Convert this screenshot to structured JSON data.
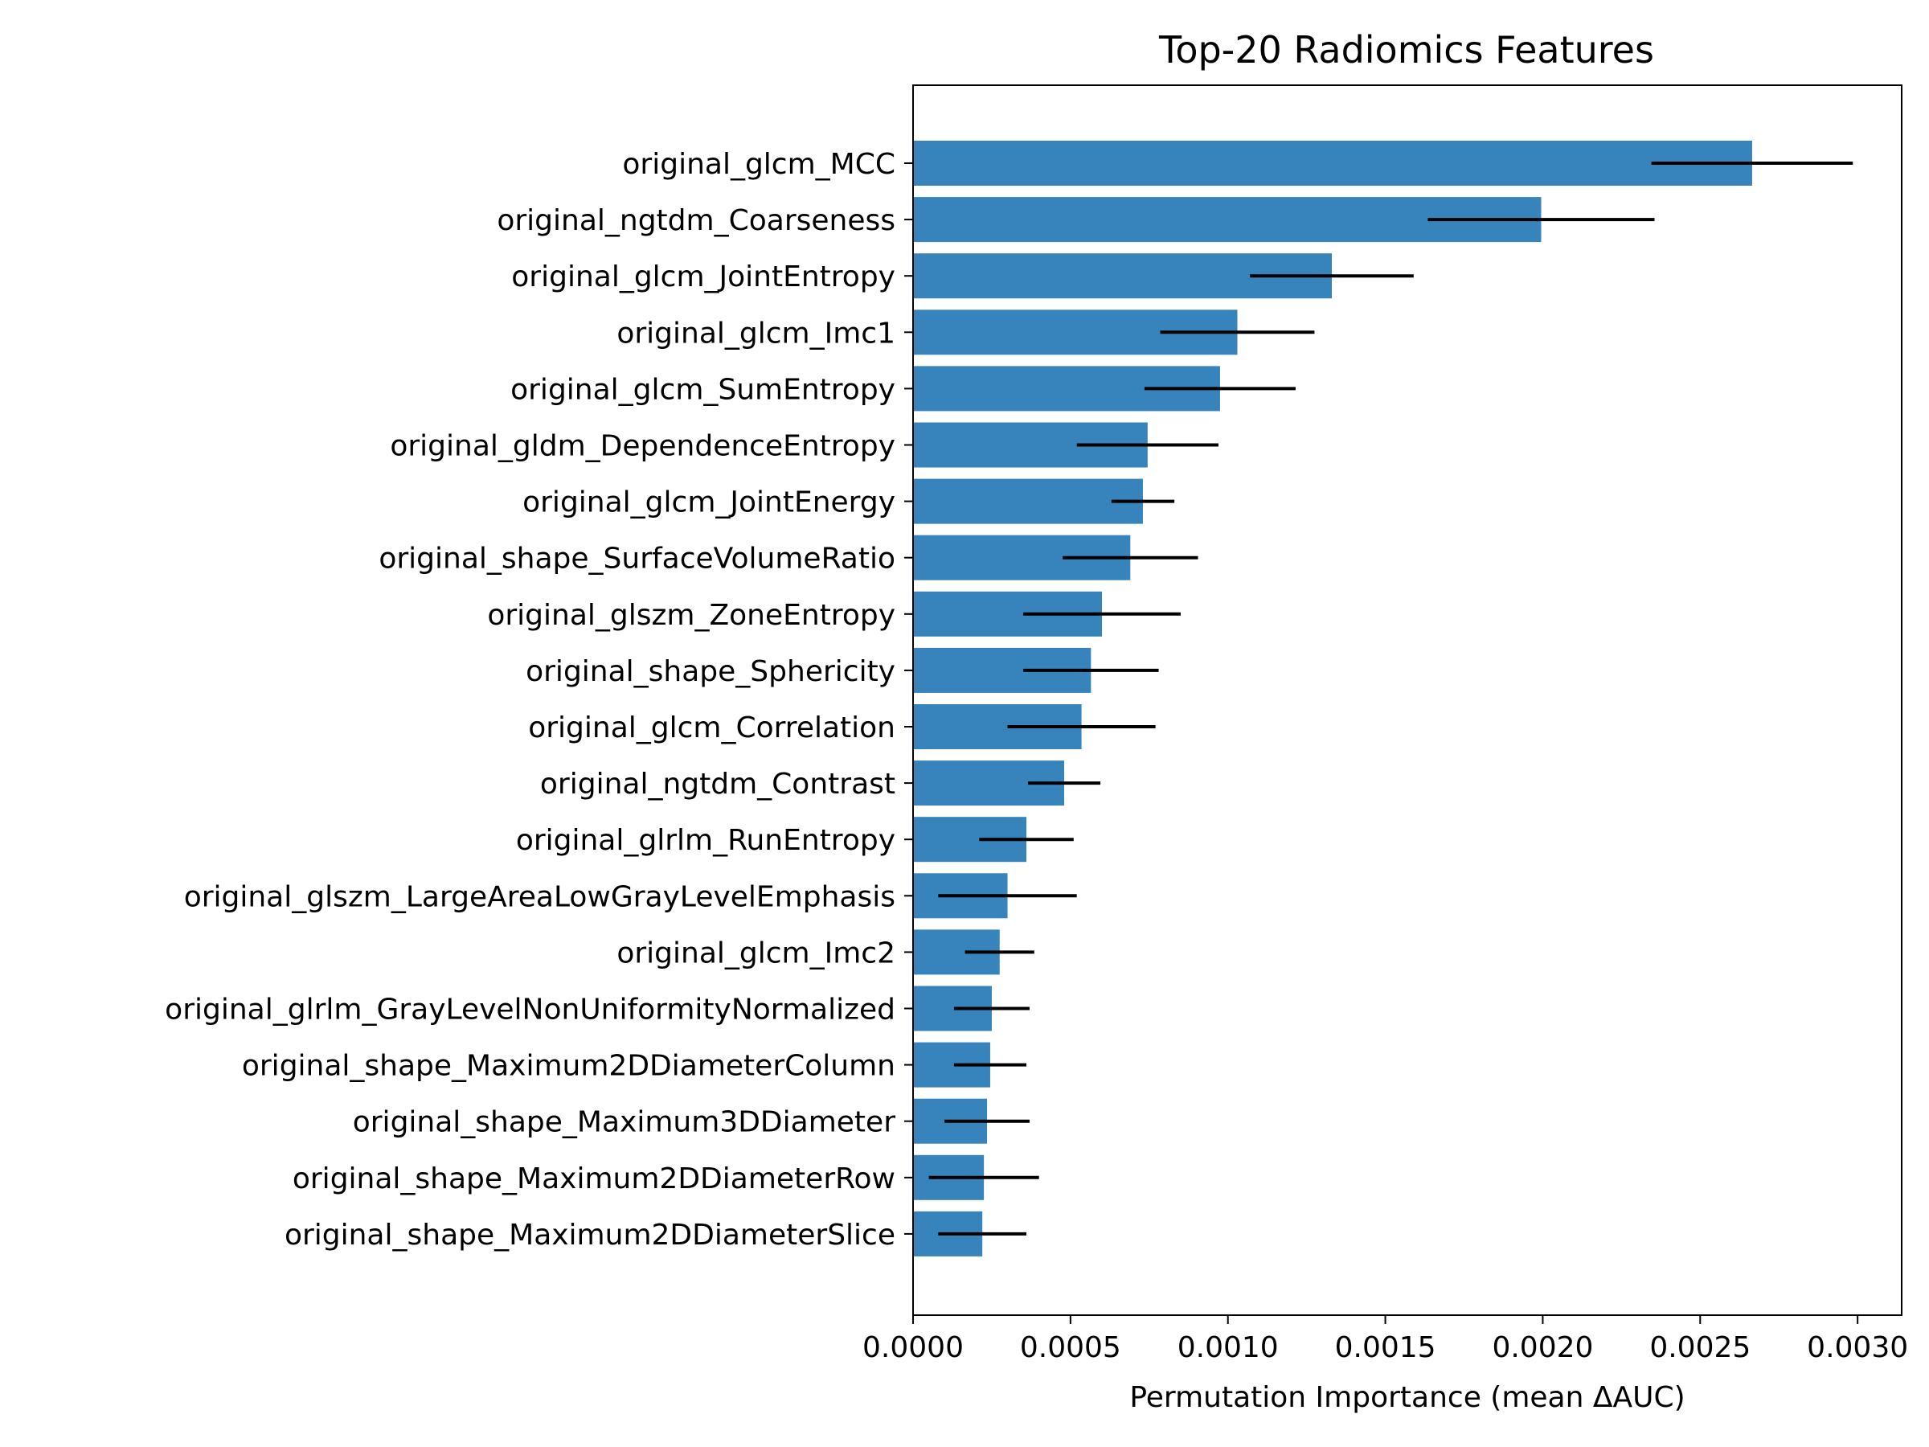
{
  "chart_data": {
    "type": "bar",
    "orientation": "horizontal",
    "title": "Top-20 Radiomics Features",
    "xlabel": "Permutation Importance (mean ΔAUC)",
    "ylabel": "",
    "xlim": [
      0.0,
      0.00314
    ],
    "xticks": [
      "0.0000",
      "0.0005",
      "0.0010",
      "0.0015",
      "0.0020",
      "0.0025",
      "0.0030"
    ],
    "grid": false,
    "bar_color": "#3783bb",
    "error_color": "#000000",
    "categories": [
      "original_glcm_MCC",
      "original_ngtdm_Coarseness",
      "original_glcm_JointEntropy",
      "original_glcm_Imc1",
      "original_glcm_SumEntropy",
      "original_gldm_DependenceEntropy",
      "original_glcm_JointEnergy",
      "original_shape_SurfaceVolumeRatio",
      "original_glszm_ZoneEntropy",
      "original_shape_Sphericity",
      "original_glcm_Correlation",
      "original_ngtdm_Contrast",
      "original_glrlm_RunEntropy",
      "original_glszm_LargeAreaLowGrayLevelEmphasis",
      "original_glcm_Imc2",
      "original_glrlm_GrayLevelNonUniformityNormalized",
      "original_shape_Maximum2DDiameterColumn",
      "original_shape_Maximum3DDiameter",
      "original_shape_Maximum2DDiameterRow",
      "original_shape_Maximum2DDiameterSlice"
    ],
    "values": [
      0.002665,
      0.001995,
      0.00133,
      0.00103,
      0.000975,
      0.000745,
      0.00073,
      0.00069,
      0.0006,
      0.000565,
      0.000535,
      0.00048,
      0.00036,
      0.0003,
      0.000275,
      0.00025,
      0.000245,
      0.000235,
      0.000225,
      0.00022
    ],
    "errors": [
      0.00032,
      0.00036,
      0.00026,
      0.000245,
      0.00024,
      0.000225,
      0.0001,
      0.000215,
      0.00025,
      0.000215,
      0.000235,
      0.000115,
      0.00015,
      0.00022,
      0.00011,
      0.00012,
      0.000115,
      0.000135,
      0.000175,
      0.00014
    ]
  }
}
